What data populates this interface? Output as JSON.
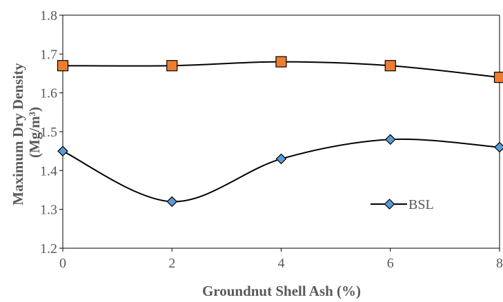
{
  "chart_data": {
    "type": "line",
    "x": [
      0,
      2,
      4,
      6,
      8
    ],
    "xlim": [
      0,
      8
    ],
    "ylim": [
      1.2,
      1.8
    ],
    "xticks": [
      "0",
      "2",
      "4",
      "6",
      "8"
    ],
    "yticks": [
      "1.2",
      "1.3",
      "1.4",
      "1.5",
      "1.6",
      "1.7",
      "1.8"
    ],
    "xlabel": "Groundnut Shell Ash (%)",
    "ylabel_line1": "Maximum Dry Density",
    "ylabel_line2": "(Mg/m³)",
    "grid": false,
    "legend_position": "lower-right",
    "series": [
      {
        "name": "",
        "marker": "square",
        "color": "#ED7D31",
        "line_color": "#000000",
        "values": [
          1.67,
          1.67,
          1.68,
          1.67,
          1.64
        ]
      },
      {
        "name": "BSL",
        "marker": "diamond",
        "color": "#5B9BD5",
        "line_color": "#000000",
        "values": [
          1.45,
          1.32,
          1.43,
          1.48,
          1.46
        ]
      }
    ]
  }
}
